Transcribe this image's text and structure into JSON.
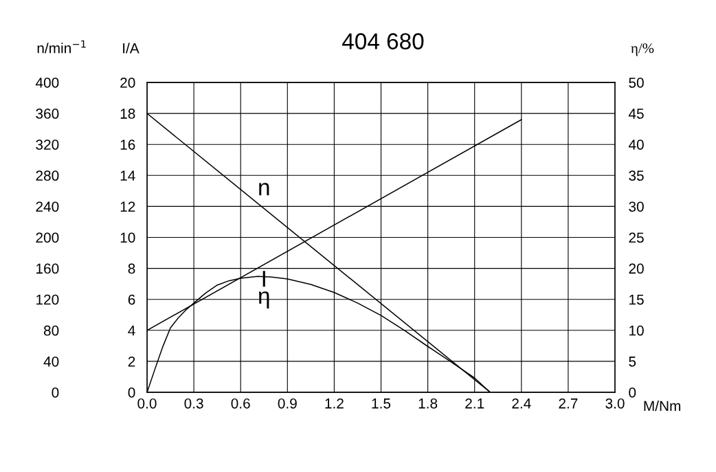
{
  "chart_data": {
    "type": "line",
    "title": "404 680",
    "xlabel": "M/Nm",
    "ylabel": "I/A",
    "y2label": "η/%",
    "y3label": "n/min$^{−1}$",
    "xlim": [
      0,
      3.0
    ],
    "xticks": [
      {
        "value": 0,
        "label": "0.0"
      },
      0.3,
      0.6,
      0.9,
      1.2,
      1.5,
      1.8,
      2.1,
      2.4,
      2.7,
      {
        "value": 3,
        "label": "3.0"
      }
    ],
    "ylim": [
      0,
      20
    ],
    "yticks": [
      0,
      2,
      4,
      6,
      8,
      10,
      12,
      14,
      16,
      18,
      20
    ],
    "y2lim": [
      0,
      50
    ],
    "y2ticks": [
      0,
      5,
      10,
      15,
      20,
      25,
      30,
      35,
      40,
      45,
      50
    ],
    "y3lim": [
      0,
      400
    ],
    "y3ticks": [
      0,
      40,
      80,
      120,
      160,
      200,
      240,
      280,
      320,
      360,
      400
    ],
    "grid": true,
    "legend": false,
    "marker": "none",
    "line_style": "solid",
    "series": [
      {
        "name": "n",
        "color": "#000000",
        "axis": "y3",
        "x": [
          0,
          2.2
        ],
        "values": [
          360,
          0
        ]
      },
      {
        "name": "I",
        "color": "#000000",
        "axis": "y",
        "x": [
          0,
          2.4
        ],
        "values": [
          4,
          17.6
        ]
      },
      {
        "name": "η",
        "color": "#000000",
        "axis": "y2",
        "x": [
          0,
          0.05,
          0.1,
          0.15,
          0.2,
          0.25,
          0.3,
          0.375,
          0.45,
          0.525,
          0.6,
          0.71,
          0.8,
          0.9,
          1.05,
          1.2,
          1.35,
          1.5,
          1.65,
          1.8,
          1.95,
          2.1,
          2.2
        ],
        "values": [
          0,
          3.7,
          7.3,
          10.4,
          12.0,
          13.3,
          14.4,
          16.0,
          17.3,
          18.0,
          18.4,
          18.7,
          18.6,
          18.3,
          17.4,
          16.1,
          14.4,
          12.4,
          10.0,
          7.4,
          4.9,
          2.3,
          0
        ]
      }
    ]
  }
}
